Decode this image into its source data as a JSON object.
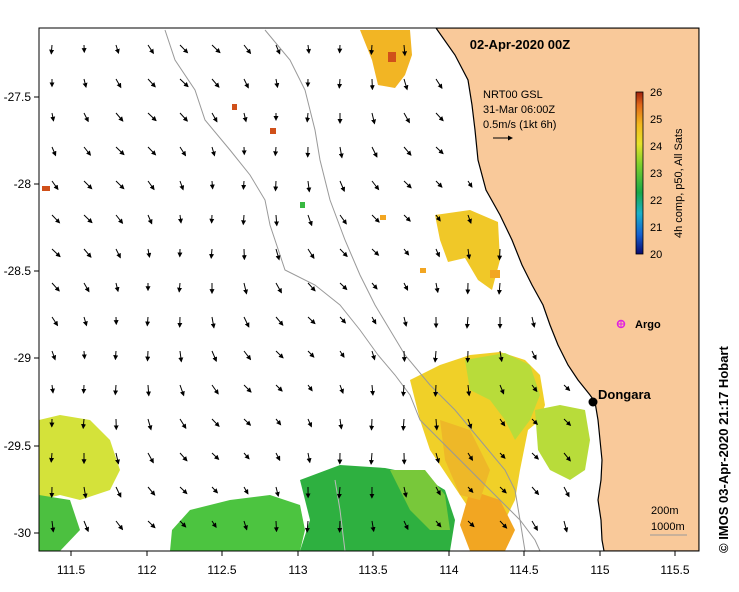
{
  "map": {
    "title": "02-Apr-2020 00Z",
    "credit": "© IMOS 03-Apr-2020 21:17 Hobart",
    "land_color": "#f9c99a",
    "sea_color": "#ffffff",
    "lon_ticks": [
      "111.5",
      "112",
      "112.5",
      "113",
      "113.5",
      "114",
      "114.5",
      "115",
      "115.5"
    ],
    "lat_ticks": [
      "-27.5",
      "-28",
      "-28.5",
      "-29",
      "-29.5",
      "-30"
    ],
    "current_legend": {
      "line1": "NRT00 GSL",
      "line2": "31-Mar 06:00Z",
      "line3": "0.5m/s (1kt 6h)"
    },
    "colorbar": {
      "label": "4h comp, p50, All Sats",
      "ticks": [
        "26",
        "25",
        "24",
        "23",
        "22",
        "21",
        "20"
      ]
    },
    "places": {
      "dongara": "Dongara",
      "argo": "Argo"
    },
    "scale": {
      "depth1": "200m",
      "depth2": "1000m"
    }
  }
}
